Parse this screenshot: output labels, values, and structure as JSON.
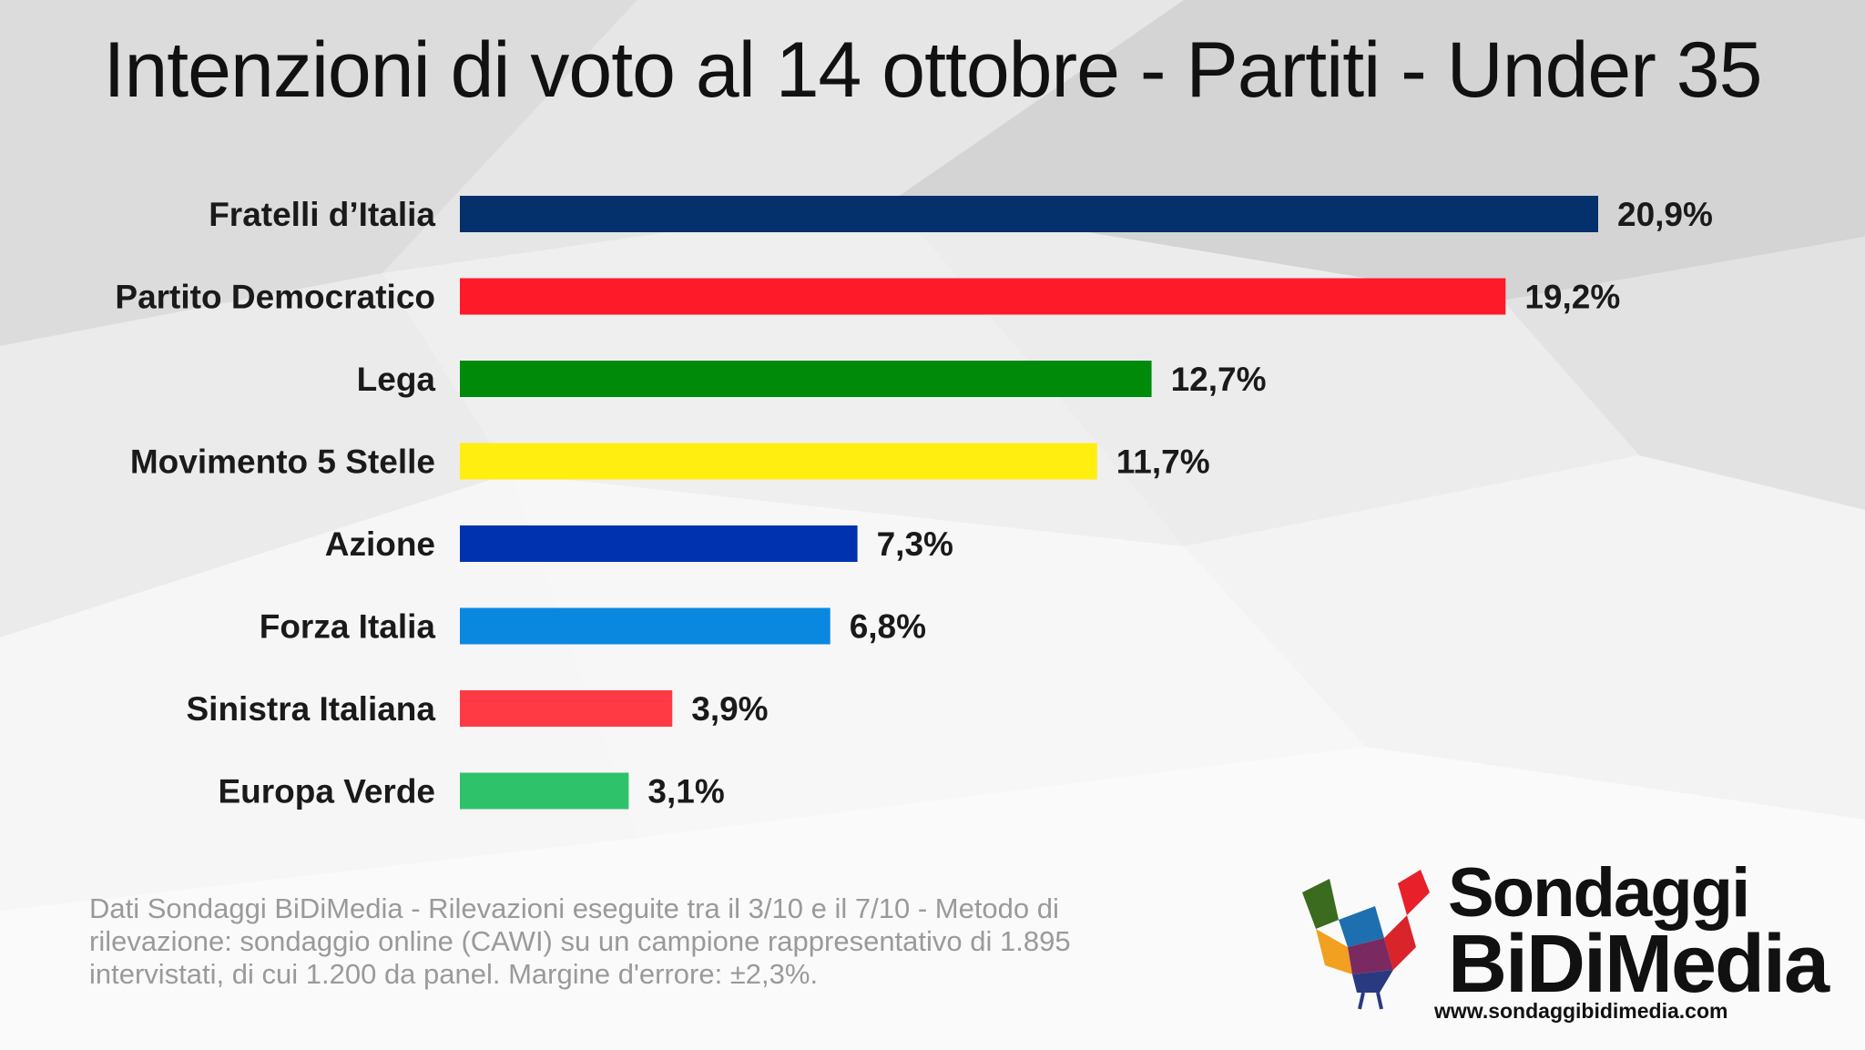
{
  "title": "Intenzioni di voto al 14 ottobre - Partiti - Under 35",
  "chart_data": {
    "type": "bar",
    "orientation": "horizontal",
    "title": "Intenzioni di voto al 14 ottobre - Partiti - Under 35",
    "categories": [
      "Fratelli d’Italia",
      "Partito Democratico",
      "Lega",
      "Movimento 5 Stelle",
      "Azione",
      "Forza Italia",
      "Sinistra Italiana",
      "Europa Verde"
    ],
    "values": [
      20.9,
      19.2,
      12.7,
      11.7,
      7.3,
      6.8,
      3.9,
      3.1
    ],
    "value_labels": [
      "20,9%",
      "19,2%",
      "12,7%",
      "11,7%",
      "7,3%",
      "6,8%",
      "3,9%",
      "3,1%"
    ],
    "colors": [
      "#04306b",
      "#ff1a2a",
      "#008a0a",
      "#ffee10",
      "#0032b0",
      "#0a88e0",
      "#ff3a44",
      "#2ec26a"
    ],
    "xlim": [
      0,
      20.9
    ],
    "grid": false,
    "legend": "none"
  },
  "footnote": "Dati Sondaggi BiDiMedia - Rilevazioni eseguite tra il 3/10 e il 7/10 - Metodo di rilevazione: sondaggio online (CAWI) su un campione rappresentativo di 1.895 intervistati, di cui 1.200 da panel. Margine d'errore: ±2,3%.",
  "logo": {
    "name_line1": "Sondaggi",
    "name_line2": "BiDiMedia",
    "url": "www.sondaggibidimedia.com"
  }
}
